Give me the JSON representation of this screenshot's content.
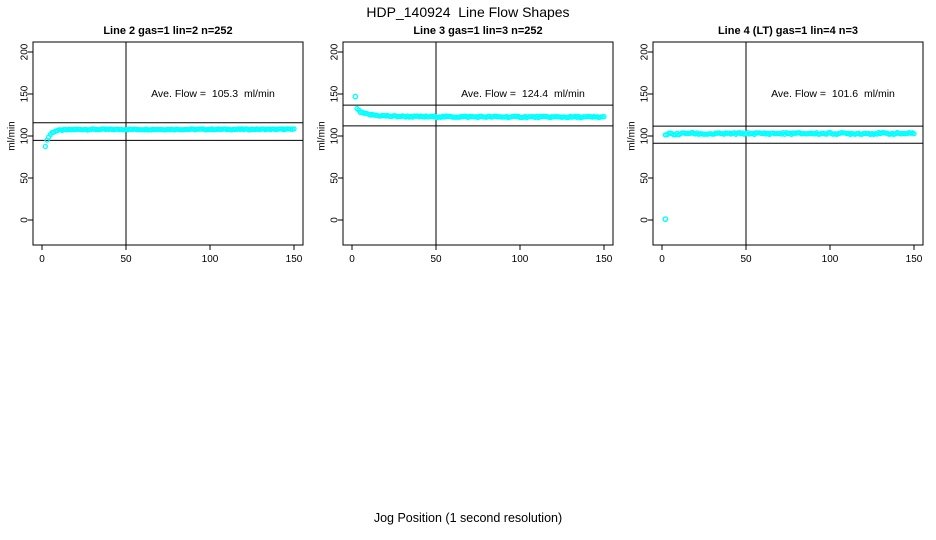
{
  "figure": {
    "title": "HDP_140924  Line Flow Shapes",
    "xlabel": "Jog Position (1 second resolution)"
  },
  "chart_data": {
    "type": "scatter",
    "title": "HDP_140924  Line Flow Shapes",
    "xlabel": "Jog Position (1 second resolution)",
    "ylabel": "ml/min",
    "xlim": [
      0,
      150
    ],
    "ylim": [
      0,
      200
    ],
    "xticks": [
      0,
      50,
      100,
      150
    ],
    "yticks": [
      0,
      50,
      100,
      150,
      200
    ],
    "grid": false,
    "legend": "none",
    "point_color": "#00FFFF",
    "line_color": "#000000",
    "panels": [
      {
        "title": "Line 2 gas=1 lin=2 n=252",
        "annotation": "Ave. Flow =  105.3  ml/min",
        "ave_flow_ml_min": 105.3,
        "n": 252,
        "ref_line_upper": 115.8,
        "ref_line_lower": 94.8,
        "vline_x": 50,
        "x_start": 2,
        "x_end": 150,
        "profile_keypoints": [
          [
            2,
            88
          ],
          [
            3,
            95
          ],
          [
            4,
            99
          ],
          [
            5,
            102
          ],
          [
            6,
            104
          ],
          [
            8,
            106
          ],
          [
            11,
            107
          ],
          [
            20,
            107.8
          ],
          [
            150,
            108
          ]
        ],
        "outliers": [],
        "noise": 0.6
      },
      {
        "title": "Line 3 gas=1 lin=3 n=252",
        "annotation": "Ave. Flow =  124.4  ml/min",
        "ave_flow_ml_min": 124.4,
        "n": 252,
        "ref_line_upper": 136.8,
        "ref_line_lower": 112.0,
        "vline_x": 50,
        "x_start": 3,
        "x_end": 150,
        "profile_keypoints": [
          [
            3,
            133
          ],
          [
            4,
            130
          ],
          [
            5,
            128.5
          ],
          [
            7,
            127
          ],
          [
            10,
            125.5
          ],
          [
            15,
            124.5
          ],
          [
            25,
            123.5
          ],
          [
            40,
            123
          ],
          [
            150,
            122.5
          ]
        ],
        "outliers": [
          [
            2,
            147
          ]
        ],
        "noise": 0.9
      },
      {
        "title": "Line 4 (LT) gas=1 lin=4 n=3",
        "annotation": "Ave. Flow =  101.6  ml/min",
        "ave_flow_ml_min": 101.6,
        "n": 3,
        "ref_line_upper": 111.8,
        "ref_line_lower": 91.4,
        "vline_x": 50,
        "x_start": 2,
        "x_end": 150,
        "profile_keypoints": [
          [
            2,
            101
          ],
          [
            4,
            103
          ],
          [
            8,
            102
          ],
          [
            15,
            103.5
          ],
          [
            25,
            102.5
          ],
          [
            50,
            103
          ],
          [
            150,
            103
          ]
        ],
        "outliers": [
          [
            2,
            1
          ]
        ],
        "noise": 1.1
      }
    ]
  }
}
